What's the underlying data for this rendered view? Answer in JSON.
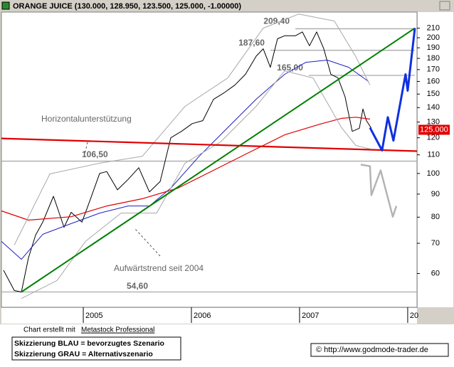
{
  "chart_data": {
    "type": "line",
    "title": "ORANGE JUICE (130.000, 128.950, 123.500, 125.000, -1.00000)",
    "log_scale": true,
    "xlim": [
      2004.243,
      2008.086
    ],
    "xticks": [
      2005,
      2006,
      2007,
      {
        "value": 2008,
        "label": "20"
      }
    ],
    "ylim": [
      50.5,
      228
    ],
    "yticks": [
      60,
      70,
      80,
      90,
      100,
      110,
      120,
      130,
      140,
      150,
      160,
      170,
      180,
      190,
      200,
      210
    ],
    "series": [
      {
        "color": "#000000",
        "x": [
          2004.263,
          2004.362,
          2004.428,
          2004.493,
          2004.559,
          2004.625,
          2004.724,
          2004.822,
          2004.888,
          2004.987,
          2005.053,
          2005.151,
          2005.217,
          2005.316,
          2005.414,
          2005.513,
          2005.612,
          2005.711,
          2005.809,
          2005.908,
          2006.007,
          2006.105,
          2006.204,
          2006.303,
          2006.401,
          2006.5,
          2006.599,
          2006.664,
          2006.73,
          2006.796,
          2006.862,
          2006.961,
          2007.026,
          2007.092,
          2007.158,
          2007.224,
          2007.289,
          2007.355,
          2007.421,
          2007.487,
          2007.553,
          2007.586,
          2007.618,
          2007.664
        ],
        "values": [
          61,
          55,
          54.6,
          65,
          73,
          78,
          89,
          76,
          82,
          78,
          86,
          100,
          101,
          92,
          97,
          103,
          91,
          96,
          120,
          124,
          129,
          131,
          146,
          151,
          157,
          166,
          182,
          189,
          172,
          199,
          202,
          202,
          206,
          192,
          206,
          189,
          166,
          163,
          148,
          124,
          126,
          139,
          131,
          126
        ]
      },
      {
        "color": "#2020c0",
        "x": [
          2004.243,
          2004.428,
          2004.625,
          2004.888,
          2005.151,
          2005.414,
          2005.612,
          2005.809,
          2006.072,
          2006.336,
          2006.599,
          2006.862,
          2007.059,
          2007.257,
          2007.454,
          2007.638
        ],
        "values": [
          70.7,
          64.5,
          73.3,
          77.4,
          81.7,
          84.7,
          84.7,
          92.8,
          109.2,
          126.4,
          146.1,
          165.9,
          176.4,
          178.4,
          172,
          160
        ]
      },
      {
        "color": "#e00000",
        "x": [
          2004.243,
          2004.493,
          2004.888,
          2005.217,
          2005.546,
          2005.875,
          2006.204,
          2006.533,
          2006.862,
          2007.191,
          2007.388,
          2007.52,
          2007.651
        ],
        "values": [
          82.6,
          78.8,
          80.2,
          84.7,
          87.9,
          92.8,
          101.6,
          111.3,
          121.8,
          128.7,
          132.5,
          133.3,
          132
        ]
      },
      {
        "color": "#a8a8a8",
        "x": [
          2004.362,
          2004.691,
          2005.151,
          2005.546,
          2005.941,
          2006.336,
          2006.664,
          2006.993,
          2007.322,
          2007.52,
          2007.651
        ],
        "values": [
          69.4,
          99.8,
          105.4,
          109.2,
          140.9,
          162.9,
          210,
          225.8,
          217.8,
          181.6,
          157
        ]
      },
      {
        "color": "#a8a8a8",
        "x": [
          2004.428,
          2004.757,
          2005.02,
          2005.349,
          2005.678,
          2005.941,
          2006.27,
          2006.599,
          2006.862,
          2007.125,
          2007.388,
          2007.52,
          2007.651
        ],
        "values": [
          52.8,
          57.9,
          70.7,
          81.7,
          81.7,
          105.4,
          117.5,
          140.9,
          168.9,
          162.9,
          126.4,
          115.4,
          113.3
        ]
      },
      {
        "color": "#008000",
        "x": [
          2004.428,
          2008.066
        ],
        "values": [
          54.6,
          210
        ]
      },
      {
        "color": "#e00000",
        "x": [
          2004.243,
          2008.086
        ],
        "values": [
          119.6,
          112.1
        ]
      },
      {
        "color": "#1030e0",
        "x": [
          2007.651,
          2007.763,
          2007.816,
          2007.868,
          2007.98,
          2008.0,
          2008.066
        ],
        "values": [
          126.4,
          112.5,
          133.3,
          118.3,
          165.9,
          152.6,
          210
        ]
      },
      {
        "color": "#b4b4b4",
        "x": [
          2007.566,
          2007.651,
          2007.664,
          2007.75,
          2007.862,
          2007.895
        ],
        "values": [
          104.6,
          103.8,
          89.5,
          101.6,
          80.2,
          84.7
        ]
      }
    ],
    "levels": [
      {
        "label": "209,40",
        "value": 209.4,
        "x": [
          2006.961,
          2008.066
        ]
      },
      {
        "label": "187,60",
        "value": 187.6,
        "x": [
          2006.73,
          2008.066
        ]
      },
      {
        "label": "165,00",
        "value": 165,
        "x": [
          2007.085,
          2008.066
        ]
      },
      {
        "label": "106,50",
        "value": 106.5,
        "x": [
          2004.243,
          2008.086
        ]
      },
      {
        "label": "54,60",
        "value": 54.6,
        "x": [
          2004.243,
          2008.086
        ]
      }
    ],
    "annotations": [
      "Horizontalunterstützung",
      "Aufwärtstrend seit 2004"
    ],
    "price_marker": {
      "value": 125,
      "label": "125.000"
    }
  },
  "footer": {
    "credit": "Chart erstellt mit",
    "software": "Metastock Professional",
    "legend": [
      "Skizzierung BLAU = bevorzugtes Szenario",
      "Skizzierung GRAU = Alternativszenario"
    ],
    "copyright": "© http://www.godmode-trader.de"
  }
}
